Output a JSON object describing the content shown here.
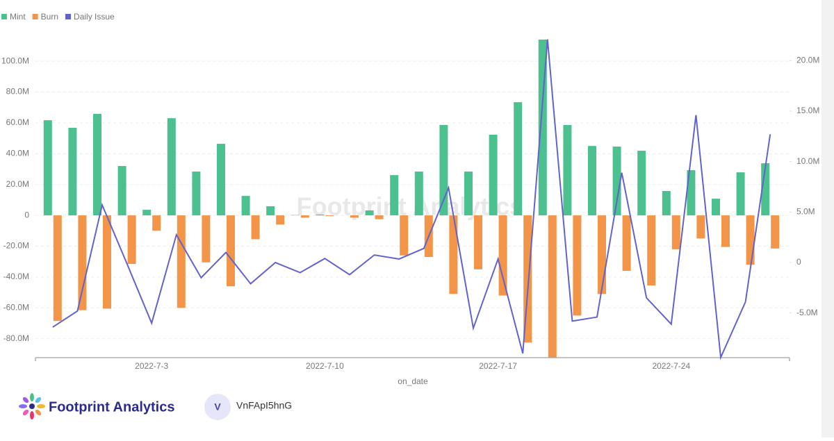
{
  "chart_data": {
    "type": "bar_line",
    "x_label": "on_date",
    "watermark": "Footprint Analytics",
    "categories": [
      null,
      null,
      null,
      null,
      "2022-7-3",
      null,
      null,
      null,
      null,
      null,
      null,
      "2022-7-10",
      null,
      null,
      null,
      null,
      null,
      null,
      "2022-7-17",
      null,
      null,
      null,
      null,
      null,
      null,
      "2022-7-24",
      null,
      null,
      null,
      null
    ],
    "series": [
      {
        "name": "Mint",
        "color": "#4cc08e",
        "type": "bar",
        "values": [
          61700000,
          56800000,
          65800000,
          32000000,
          3600000,
          63000000,
          28400000,
          46400000,
          12600000,
          5900000,
          200000,
          500000,
          0,
          3200000,
          26100000,
          28400000,
          58600000,
          28400000,
          52300000,
          73400000,
          114000000,
          58600000,
          45000000,
          44600000,
          41900000,
          15800000,
          29300000,
          10800000,
          27900000,
          33800000
        ]
      },
      {
        "name": "Burn",
        "color": "#f39549",
        "type": "bar",
        "values": [
          -68500000,
          -61500000,
          -60500000,
          -31500000,
          -10000000,
          -60000000,
          -30500000,
          -46000000,
          -15500000,
          -6000000,
          -1500000,
          -500000,
          -1500000,
          -2500000,
          -26000000,
          -27000000,
          -51000000,
          -35000000,
          -52000000,
          -82500000,
          -92000000,
          -65000000,
          -51000000,
          -36000000,
          -45500000,
          -22000000,
          -15000000,
          -20500000,
          -32000000,
          -21500000
        ]
      },
      {
        "name": "Daily Issue",
        "color": "#6262cc",
        "type": "line",
        "axis": "y2",
        "values": [
          -6400000,
          -4800000,
          5700000,
          -100000,
          -6000000,
          2750000,
          -1500000,
          1000000,
          -2100000,
          0,
          -1000000,
          400000,
          -1200000,
          750000,
          350000,
          1400000,
          7400000,
          -6500000,
          350000,
          -9000000,
          22100000,
          -5800000,
          -5400000,
          8900000,
          -3500000,
          -6100000,
          14600000,
          -9400000,
          -3900000,
          12700000
        ]
      }
    ],
    "ylim": [
      -92300000,
      114000000
    ],
    "yticks": [
      {
        "value": -80000000,
        "label": "-80.0M"
      },
      {
        "value": -60000000,
        "label": "-60.0M"
      },
      {
        "value": -40000000,
        "label": "-40.0M"
      },
      {
        "value": -20000000,
        "label": "-20.0M"
      },
      0,
      {
        "value": 20000000,
        "label": "20.0M"
      },
      {
        "value": 40000000,
        "label": "40.0M"
      },
      {
        "value": 60000000,
        "label": "60.0M"
      },
      {
        "value": 80000000,
        "label": "80.0M"
      },
      {
        "value": 100000000,
        "label": "100.0M"
      }
    ],
    "y2lim": [
      -9420000,
      22080000
    ],
    "y2ticks": [
      {
        "value": -5000000,
        "label": "-5.0M"
      },
      0,
      {
        "value": 5000000,
        "label": "5.0M"
      },
      {
        "value": 10000000,
        "label": "10.0M"
      },
      {
        "value": 15000000,
        "label": "15.0M"
      },
      {
        "value": 20000000,
        "label": "20.0M"
      }
    ],
    "grid": true
  },
  "footer": {
    "brand": "Footprint Analytics",
    "avatar": "V",
    "user": "VnFApI5hnG"
  }
}
